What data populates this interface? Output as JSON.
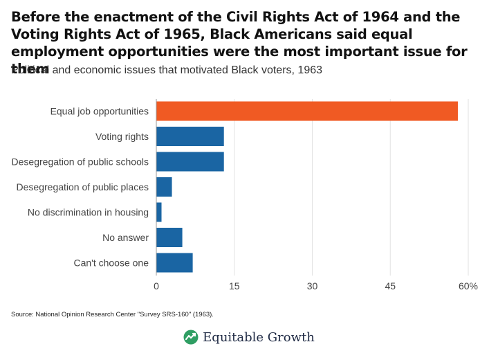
{
  "title": "Before the enactment of the Civil Rights Act of 1964 and the Voting Rights Act of 1965, Black Americans said equal employment opportunities were the most important issue for them",
  "subtitle": "Political and economic issues that motivated Black voters, 1963",
  "source": "Source: National Opinion Research Center \"Survey SRS-160\" (1963).",
  "brand": {
    "name": "Equitable Growth",
    "logo_icon": "leaf-logo-icon"
  },
  "colors": {
    "highlight": "#f05a23",
    "bar": "#1a65a3",
    "grid": "#e2e2e2",
    "text": "#444444"
  },
  "chart_data": {
    "type": "bar",
    "orientation": "horizontal",
    "categories": [
      "Equal job opportunities",
      "Voting rights",
      "Desegregation of public schools",
      "Desegregation of public places",
      "No discrimination in housing",
      "No answer",
      "Can't choose one"
    ],
    "values": [
      58,
      13,
      13,
      3,
      1,
      5,
      7
    ],
    "highlight_index": 0,
    "xlim": [
      0,
      60
    ],
    "ticks": [
      0,
      15,
      30,
      45,
      60
    ],
    "tick_labels": [
      "0",
      "15",
      "30",
      "45",
      "60%"
    ],
    "grid": true
  }
}
